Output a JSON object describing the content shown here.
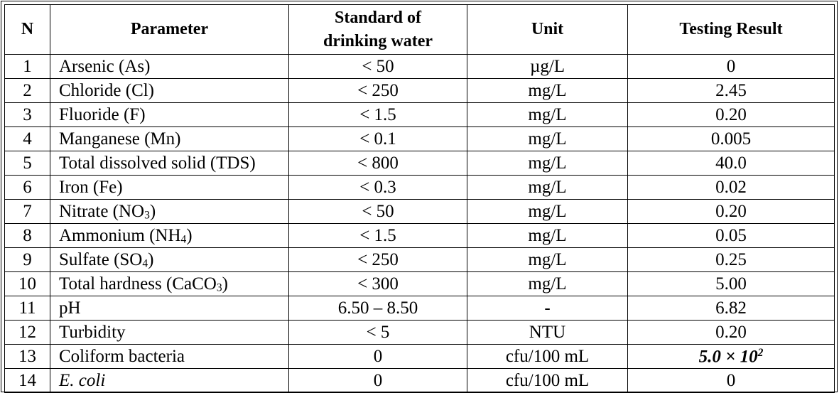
{
  "headers": {
    "n": "N",
    "parameter": "Parameter",
    "standard_line1": "Standard of",
    "standard_line2": "drinking water",
    "unit": "Unit",
    "result": "Testing Result"
  },
  "rows": [
    {
      "n": "1",
      "param": "Arsenic (As)",
      "param_sub": "",
      "param_tail": "",
      "standard": "< 50",
      "unit": "µg/L",
      "result": "0"
    },
    {
      "n": "2",
      "param": "Chloride (Cl)",
      "param_sub": "",
      "param_tail": "",
      "standard": "< 250",
      "unit": "mg/L",
      "result": "2.45"
    },
    {
      "n": "3",
      "param": "Fluoride (F)",
      "param_sub": "",
      "param_tail": "",
      "standard": "< 1.5",
      "unit": "mg/L",
      "result": "0.20"
    },
    {
      "n": "4",
      "param": "Manganese (Mn)",
      "param_sub": "",
      "param_tail": "",
      "standard": "< 0.1",
      "unit": "mg/L",
      "result": "0.005"
    },
    {
      "n": "5",
      "param": "Total dissolved solid (TDS)",
      "param_sub": "",
      "param_tail": "",
      "standard": "< 800",
      "unit": "mg/L",
      "result": "40.0"
    },
    {
      "n": "6",
      "param": "Iron (Fe)",
      "param_sub": "",
      "param_tail": "",
      "standard": "< 0.3",
      "unit": "mg/L",
      "result": "0.02"
    },
    {
      "n": "7",
      "param": "Nitrate (NO",
      "param_sub": "3",
      "param_tail": ")",
      "standard": "< 50",
      "unit": "mg/L",
      "result": "0.20"
    },
    {
      "n": "8",
      "param": "Ammonium (NH",
      "param_sub": "4",
      "param_tail": ")",
      "standard": "< 1.5",
      "unit": "mg/L",
      "result": "0.05"
    },
    {
      "n": "9",
      "param": "Sulfate (SO",
      "param_sub": "4",
      "param_tail": ")",
      "standard": "< 250",
      "unit": "mg/L",
      "result": "0.25"
    },
    {
      "n": "10",
      "param": "Total hardness (CaCO",
      "param_sub": "3",
      "param_tail": ")",
      "standard": "< 300",
      "unit": "mg/L",
      "result": "5.00"
    },
    {
      "n": "11",
      "param": "pH",
      "param_sub": "",
      "param_tail": "",
      "standard": "6.50 – 8.50",
      "unit": "-",
      "result": "6.82"
    },
    {
      "n": "12",
      "param": "Turbidity",
      "param_sub": "",
      "param_tail": "",
      "standard": "< 5",
      "unit": "NTU",
      "result": "0.20"
    },
    {
      "n": "13",
      "param": "Coliform bacteria",
      "param_sub": "",
      "param_tail": "",
      "standard": "0",
      "unit": "cfu/100 mL",
      "result": "5.0 × 10",
      "result_sup": "2"
    },
    {
      "n": "14",
      "param": "E. coli",
      "param_sub": "",
      "param_tail": "",
      "standard": "0",
      "unit": "cfu/100 mL",
      "result": "0"
    }
  ]
}
